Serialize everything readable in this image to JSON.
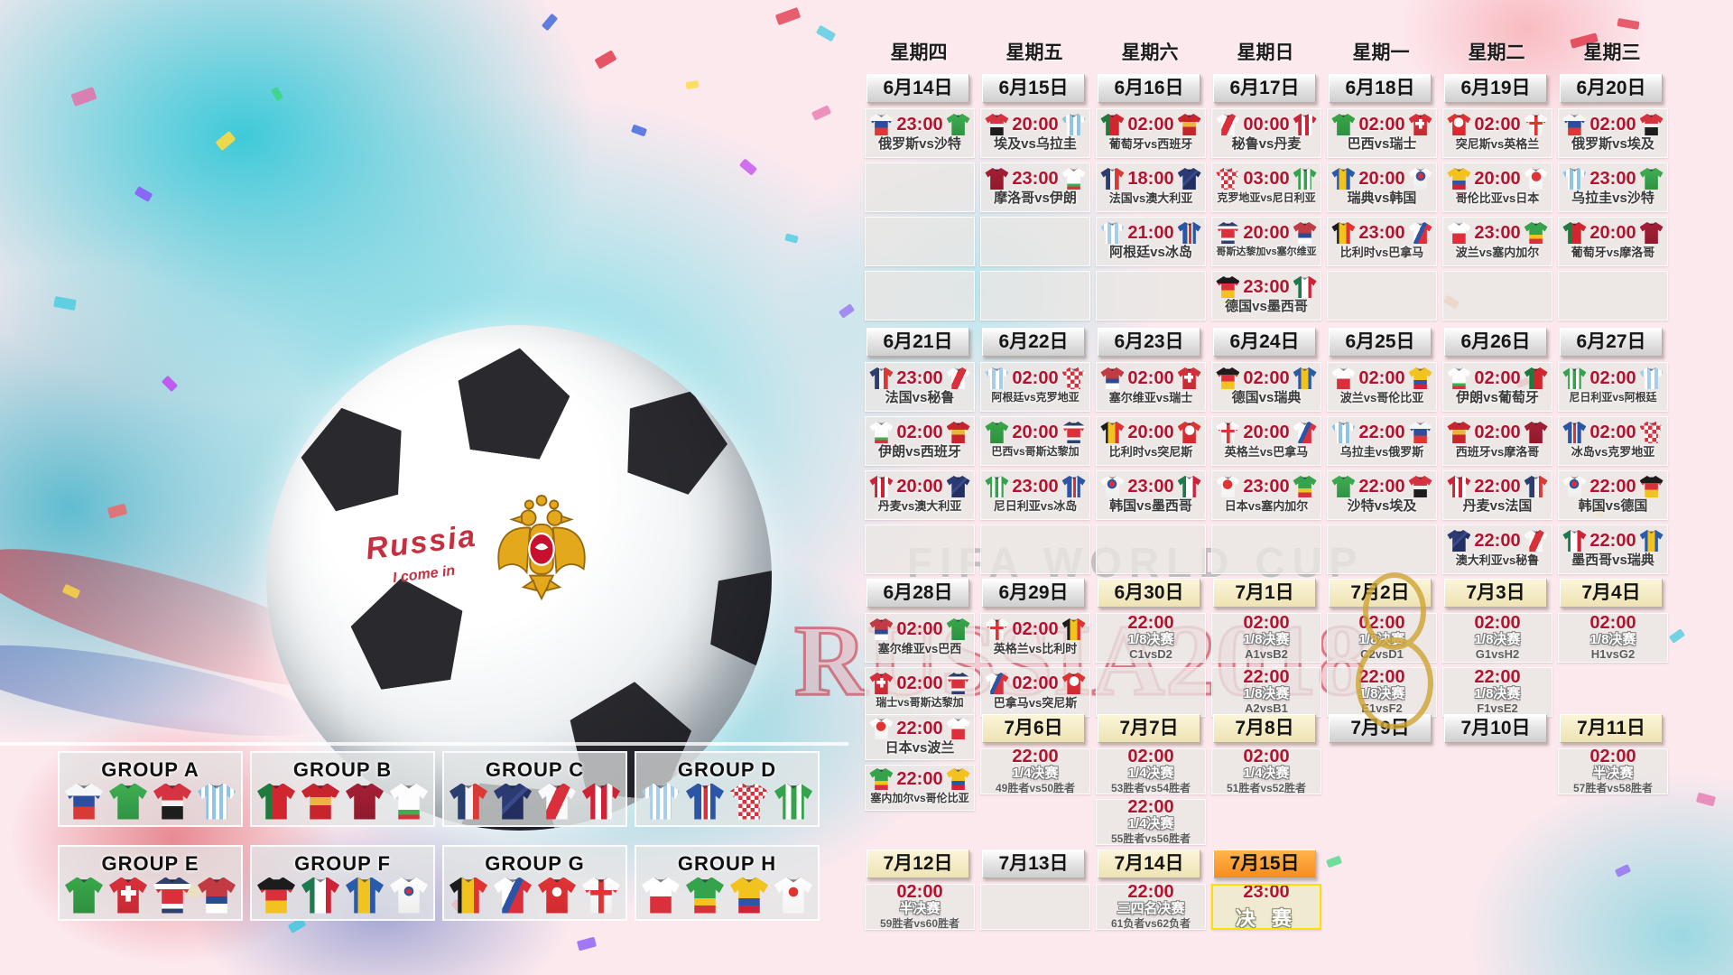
{
  "watermark": {
    "line1": "FIFA WORLD CUP",
    "line2": "RUSSIA2018"
  },
  "ball_text": {
    "line1": "Russia",
    "line2": "I come in"
  },
  "jersey_colors": {
    "ru": "linear-gradient(180deg,#f5f7f8 0 34%,#2b4ea0 34% 64%,#d93a36 64%)",
    "sa": "linear-gradient(180deg,#3fae52,#2f9343)",
    "eg": "linear-gradient(180deg,#d5333f 0 46%,#f2f2f2 46% 62%,#1d1d1d 62%)",
    "uy": "repeating-linear-gradient(90deg,#8fc3e8 0 4px,#ffffff 4px 8px)",
    "pt": "linear-gradient(90deg,#1f7a3d 0 38%,#cf2630 38%)",
    "es": "linear-gradient(180deg,#c8242e 0 38%,#e8b63c 38% 60%,#c8242e 60%)",
    "ma": "linear-gradient(180deg,#a51f35,#8f1a2d)",
    "ir": "linear-gradient(180deg,#fdfdfd 0 72%,#3fae52 72% 86%,#d5333f 86%)",
    "fr": "linear-gradient(90deg,#2a3f6e 0 42%,#f2f4f6 42% 62%,#d93a36 62%)",
    "au": "linear-gradient(135deg,#2b3a73 0 46%,#3a4a8a 46% 54%,#222f60 54%)",
    "pe": "linear-gradient(115deg,#fafafa 0 38%,#d9303c 38% 62%,#fafafa 62%)",
    "dk": "linear-gradient(90deg,#ce2336 0 34%,#ffffff 34% 50%,#ce2336 50% 66%,#ffffff 66% 80%,#ce2336 80%)",
    "ar": "repeating-linear-gradient(90deg,#a7cdec 0 4px,#ffffff 4px 8px)",
    "is": "linear-gradient(90deg,#2c55a5 0 40%,#ffffff 40% 47%,#d9303c 47% 57%,#ffffff 57% 64%,#2c55a5 64%)",
    "hr": "repeating-conic-gradient(#d9303c 0% 25%,#ffffff 25% 50%) 0 0 / 9px 9px",
    "ng": "linear-gradient(90deg,#35a24c 0 30%,#ffffff 30% 44%,#35a24c 44% 58%,#ffffff 58% 72%,#35a24c 72%)",
    "br": "linear-gradient(180deg,#39a84a,#2e8f3e)",
    "ch": "linear-gradient(#ffffff,#ffffff) 50% 42%/14% 44% no-repeat, linear-gradient(#ffffff,#ffffff) 50% 42%/40% 15% no-repeat, linear-gradient(#d9303c,#c62a34)",
    "cr": "linear-gradient(180deg,#30406e 0 18%,#ffffff 18% 32%,#d9303c 32% 72%,#ffffff 72% 86%,#30406e 86%)",
    "rs": "linear-gradient(180deg,#c23a44 0 52%,#2c4a8f 52% 72%,#ffffff 72%)",
    "de": "linear-gradient(180deg,#1c1c1c 0 34%,#d9303c 34% 64%,#f2c21e 64%)",
    "mx": "linear-gradient(90deg,#1c7a4c 0 34%,#ffffff 34% 64%,#ce2336 64%)",
    "se": "linear-gradient(90deg,#2a5ba8 0 32%,#f2c21e 32% 64%,#2a5ba8 64%)",
    "kr": "radial-gradient(circle at 50% 38%, #d9303c 0 3px, #2c55a5 3px 5px, rgba(0,0,0,0) 5.5px), linear-gradient(#ffffff,#ededed)",
    "be": "linear-gradient(90deg,#1c1c1c 0 32%,#f2c21e 32% 64%,#e03434 64%)",
    "pa": "linear-gradient(115deg,#ffffff 0 42%,#2c55a5 42% 56%,#d9303c 56%)",
    "tn": "radial-gradient(circle at 50% 40%, #ffffff 0 5px, rgba(0,0,0,0) 5.5px), linear-gradient(#e03434,#d02b30)",
    "en": "linear-gradient(#e03434,#e03434) 50% 50%/14% 100% no-repeat, linear-gradient(#e03434,#e03434) 50% 42%/100% 14% no-repeat, linear-gradient(#ffffff,#f0f0f0)",
    "pl": "linear-gradient(180deg,#ffffff 0 52%,#d9303c 52%)",
    "sn": "linear-gradient(180deg,#35a24c 0 58%,#f2c21e 58% 78%,#d9303c 78%)",
    "co": "linear-gradient(180deg,#f2c21e 0 58%,#2c55a5 58% 78%,#ce2336 78%)",
    "jp": "radial-gradient(circle at 50% 40%, #e03434 0 5px, rgba(0,0,0,0) 5.5px), linear-gradient(#ffffff,#f3f3f3)"
  },
  "groups": [
    {
      "letter": "A",
      "label": "GROUP A",
      "teams": [
        "ru",
        "sa",
        "eg",
        "uy"
      ]
    },
    {
      "letter": "B",
      "label": "GROUP B",
      "teams": [
        "pt",
        "es",
        "ma",
        "ir"
      ]
    },
    {
      "letter": "C",
      "label": "GROUP C",
      "teams": [
        "fr",
        "au",
        "pe",
        "dk"
      ]
    },
    {
      "letter": "D",
      "label": "GROUP D",
      "teams": [
        "ar",
        "is",
        "hr",
        "ng"
      ]
    },
    {
      "letter": "E",
      "label": "GROUP E",
      "teams": [
        "br",
        "ch",
        "cr",
        "rs"
      ]
    },
    {
      "letter": "F",
      "label": "GROUP F",
      "teams": [
        "de",
        "mx",
        "se",
        "kr"
      ]
    },
    {
      "letter": "G",
      "label": "GROUP G",
      "teams": [
        "be",
        "pa",
        "tn",
        "en"
      ]
    },
    {
      "letter": "H",
      "label": "GROUP H",
      "teams": [
        "pl",
        "sn",
        "co",
        "jp"
      ]
    }
  ],
  "calendar": {
    "weekdays": [
      "星期四",
      "星期五",
      "星期六",
      "星期日",
      "星期一",
      "星期二",
      "星期三"
    ],
    "weeks": [
      {
        "dates": [
          {
            "label": "6月14日",
            "style": "s"
          },
          {
            "label": "6月15日",
            "style": "s"
          },
          {
            "label": "6月16日",
            "style": "s"
          },
          {
            "label": "6月17日",
            "style": "s"
          },
          {
            "label": "6月18日",
            "style": "s"
          },
          {
            "label": "6月19日",
            "style": "s"
          },
          {
            "label": "6月20日",
            "style": "s"
          }
        ],
        "rows": [
          [
            {
              "t": "m",
              "time": "23:00",
              "h": "ru",
              "a": "sa",
              "label": "俄罗斯vs沙特"
            },
            {
              "t": "m",
              "time": "20:00",
              "h": "eg",
              "a": "uy",
              "label": "埃及vs乌拉圭"
            },
            {
              "t": "m",
              "time": "02:00",
              "h": "pt",
              "a": "es",
              "label": "葡萄牙vs西班牙"
            },
            {
              "t": "m",
              "time": "00:00",
              "h": "pe",
              "a": "dk",
              "label": "秘鲁vs丹麦"
            },
            {
              "t": "m",
              "time": "02:00",
              "h": "br",
              "a": "ch",
              "label": "巴西vs瑞士"
            },
            {
              "t": "m",
              "time": "02:00",
              "h": "tn",
              "a": "en",
              "label": "突尼斯vs英格兰"
            },
            {
              "t": "m",
              "time": "02:00",
              "h": "ru",
              "a": "eg",
              "label": "俄罗斯vs埃及"
            }
          ],
          [
            {
              "t": "e"
            },
            {
              "t": "m",
              "time": "23:00",
              "h": "ma",
              "a": "ir",
              "label": "摩洛哥vs伊朗"
            },
            {
              "t": "m",
              "time": "18:00",
              "h": "fr",
              "a": "au",
              "label": "法国vs澳大利亚"
            },
            {
              "t": "m",
              "time": "03:00",
              "h": "hr",
              "a": "ng",
              "label": "克罗地亚vs尼日利亚"
            },
            {
              "t": "m",
              "time": "20:00",
              "h": "se",
              "a": "kr",
              "label": "瑞典vs韩国"
            },
            {
              "t": "m",
              "time": "20:00",
              "h": "co",
              "a": "jp",
              "label": "哥伦比亚vs日本"
            },
            {
              "t": "m",
              "time": "23:00",
              "h": "uy",
              "a": "sa",
              "label": "乌拉圭vs沙特"
            }
          ],
          [
            {
              "t": "e"
            },
            {
              "t": "e"
            },
            {
              "t": "m",
              "time": "21:00",
              "h": "ar",
              "a": "is",
              "label": "阿根廷vs冰岛"
            },
            {
              "t": "m",
              "time": "20:00",
              "h": "cr",
              "a": "rs",
              "label": "哥斯达黎加vs塞尔维亚"
            },
            {
              "t": "m",
              "time": "23:00",
              "h": "be",
              "a": "pa",
              "label": "比利时vs巴拿马"
            },
            {
              "t": "m",
              "time": "23:00",
              "h": "pl",
              "a": "sn",
              "label": "波兰vs塞内加尔"
            },
            {
              "t": "m",
              "time": "20:00",
              "h": "pt",
              "a": "ma",
              "label": "葡萄牙vs摩洛哥"
            }
          ],
          [
            {
              "t": "e"
            },
            {
              "t": "e"
            },
            {
              "t": "e"
            },
            {
              "t": "m",
              "time": "23:00",
              "h": "de",
              "a": "mx",
              "label": "德国vs墨西哥"
            },
            {
              "t": "e"
            },
            {
              "t": "e"
            },
            {
              "t": "e"
            }
          ]
        ]
      },
      {
        "dates": [
          {
            "label": "6月21日",
            "style": "s"
          },
          {
            "label": "6月22日",
            "style": "s"
          },
          {
            "label": "6月23日",
            "style": "s"
          },
          {
            "label": "6月24日",
            "style": "s"
          },
          {
            "label": "6月25日",
            "style": "s"
          },
          {
            "label": "6月26日",
            "style": "s"
          },
          {
            "label": "6月27日",
            "style": "s"
          }
        ],
        "rows": [
          [
            {
              "t": "m",
              "time": "23:00",
              "h": "fr",
              "a": "pe",
              "label": "法国vs秘鲁"
            },
            {
              "t": "m",
              "time": "02:00",
              "h": "ar",
              "a": "hr",
              "label": "阿根廷vs克罗地亚"
            },
            {
              "t": "m",
              "time": "02:00",
              "h": "rs",
              "a": "ch",
              "label": "塞尔维亚vs瑞士"
            },
            {
              "t": "m",
              "time": "02:00",
              "h": "de",
              "a": "se",
              "label": "德国vs瑞典"
            },
            {
              "t": "m",
              "time": "02:00",
              "h": "pl",
              "a": "co",
              "label": "波兰vs哥伦比亚"
            },
            {
              "t": "m",
              "time": "02:00",
              "h": "ir",
              "a": "pt",
              "label": "伊朗vs葡萄牙"
            },
            {
              "t": "m",
              "time": "02:00",
              "h": "ng",
              "a": "ar",
              "label": "尼日利亚vs阿根廷"
            }
          ],
          [
            {
              "t": "m",
              "time": "02:00",
              "h": "ir",
              "a": "es",
              "label": "伊朗vs西班牙"
            },
            {
              "t": "m",
              "time": "20:00",
              "h": "br",
              "a": "cr",
              "label": "巴西vs哥斯达黎加"
            },
            {
              "t": "m",
              "time": "20:00",
              "h": "be",
              "a": "tn",
              "label": "比利时vs突尼斯"
            },
            {
              "t": "m",
              "time": "20:00",
              "h": "en",
              "a": "pa",
              "label": "英格兰vs巴拿马"
            },
            {
              "t": "m",
              "time": "22:00",
              "h": "uy",
              "a": "ru",
              "label": "乌拉圭vs俄罗斯"
            },
            {
              "t": "m",
              "time": "02:00",
              "h": "es",
              "a": "ma",
              "label": "西班牙vs摩洛哥"
            },
            {
              "t": "m",
              "time": "02:00",
              "h": "is",
              "a": "hr",
              "label": "冰岛vs克罗地亚"
            }
          ],
          [
            {
              "t": "m",
              "time": "20:00",
              "h": "dk",
              "a": "au",
              "label": "丹麦vs澳大利亚"
            },
            {
              "t": "m",
              "time": "23:00",
              "h": "ng",
              "a": "is",
              "label": "尼日利亚vs冰岛"
            },
            {
              "t": "m",
              "time": "23:00",
              "h": "kr",
              "a": "mx",
              "label": "韩国vs墨西哥"
            },
            {
              "t": "m",
              "time": "23:00",
              "h": "jp",
              "a": "sn",
              "label": "日本vs塞内加尔"
            },
            {
              "t": "m",
              "time": "22:00",
              "h": "sa",
              "a": "eg",
              "label": "沙特vs埃及"
            },
            {
              "t": "m",
              "time": "22:00",
              "h": "dk",
              "a": "fr",
              "label": "丹麦vs法国"
            },
            {
              "t": "m",
              "time": "22:00",
              "h": "kr",
              "a": "de",
              "label": "韩国vs德国"
            }
          ],
          [
            {
              "t": "e"
            },
            {
              "t": "e"
            },
            {
              "t": "e"
            },
            {
              "t": "e"
            },
            {
              "t": "e"
            },
            {
              "t": "m",
              "time": "22:00",
              "h": "au",
              "a": "pe",
              "label": "澳大利亚vs秘鲁"
            },
            {
              "t": "m",
              "time": "22:00",
              "h": "mx",
              "a": "se",
              "label": "墨西哥vs瑞典"
            }
          ]
        ]
      },
      {
        "dates": [
          {
            "label": "6月28日",
            "style": "s"
          },
          {
            "label": "6月29日",
            "style": "s"
          },
          {
            "label": "6月30日",
            "style": "c"
          },
          {
            "label": "7月1日",
            "style": "c"
          },
          {
            "label": "7月2日",
            "style": "c"
          },
          {
            "label": "7月3日",
            "style": "c"
          },
          {
            "label": "7月4日",
            "style": "c"
          }
        ],
        "rows": [
          [
            {
              "t": "m",
              "time": "02:00",
              "h": "rs",
              "a": "br",
              "label": "塞尔维亚vs巴西"
            },
            {
              "t": "m",
              "time": "02:00",
              "h": "en",
              "a": "be",
              "label": "英格兰vs比利时"
            },
            {
              "t": "k",
              "time": "22:00",
              "stage": "1/8决赛",
              "teams": "C1vsD2"
            },
            {
              "t": "k",
              "time": "02:00",
              "stage": "1/8决赛",
              "teams": "A1vsB2"
            },
            {
              "t": "k",
              "time": "02:00",
              "stage": "1/8决赛",
              "teams": "C2vsD1"
            },
            {
              "t": "k",
              "time": "02:00",
              "stage": "1/8决赛",
              "teams": "G1vsH2"
            },
            {
              "t": "k",
              "time": "02:00",
              "stage": "1/8决赛",
              "teams": "H1vsG2"
            }
          ],
          [
            {
              "t": "m",
              "time": "02:00",
              "h": "ch",
              "a": "cr",
              "label": "瑞士vs哥斯达黎加"
            },
            {
              "t": "m",
              "time": "02:00",
              "h": "pa",
              "a": "tn",
              "label": "巴拿马vs突尼斯"
            },
            {
              "t": "e"
            },
            {
              "t": "k",
              "time": "22:00",
              "stage": "1/8决赛",
              "teams": "A2vsB1"
            },
            {
              "t": "k",
              "time": "22:00",
              "stage": "1/8决赛",
              "teams": "E1vsF2"
            },
            {
              "t": "k",
              "time": "22:00",
              "stage": "1/8决赛",
              "teams": "F1vsE2"
            },
            null
          ]
        ]
      },
      {
        "dates": [
          null,
          {
            "label": "7月6日",
            "style": "c"
          },
          {
            "label": "7月7日",
            "style": "c"
          },
          {
            "label": "7月8日",
            "style": "c"
          },
          {
            "label": "7月9日",
            "style": "s"
          },
          {
            "label": "7月10日",
            "style": "s"
          },
          {
            "label": "7月11日",
            "style": "c"
          }
        ],
        "rows": [
          [
            {
              "t": "m",
              "time": "22:00",
              "h": "jp",
              "a": "pl",
              "label": "日本vs波兰"
            },
            {
              "t": "k",
              "time": "22:00",
              "stage": "1/4决赛",
              "teams": "49胜者vs50胜者"
            },
            {
              "t": "k",
              "time": "02:00",
              "stage": "1/4决赛",
              "teams": "53胜者vs54胜者"
            },
            {
              "t": "k",
              "time": "02:00",
              "stage": "1/4决赛",
              "teams": "51胜者vs52胜者"
            },
            null,
            null,
            {
              "t": "k",
              "time": "02:00",
              "stage": "半决赛",
              "teams": "57胜者vs58胜者"
            }
          ],
          [
            {
              "t": "m",
              "time": "22:00",
              "h": "sn",
              "a": "co",
              "label": "塞内加尔vs哥伦比亚"
            },
            null,
            {
              "t": "k",
              "time": "22:00",
              "stage": "1/4决赛",
              "teams": "55胜者vs56胜者"
            },
            null,
            null,
            null,
            null
          ]
        ]
      },
      {
        "dates": [
          {
            "label": "7月12日",
            "style": "c"
          },
          {
            "label": "7月13日",
            "style": "s"
          },
          {
            "label": "7月14日",
            "style": "c"
          },
          {
            "label": "7月15日",
            "style": "o"
          },
          null,
          null,
          null
        ],
        "rows": [
          [
            {
              "t": "k",
              "time": "02:00",
              "stage": "半决赛",
              "teams": "59胜者vs60胜者"
            },
            {
              "t": "e"
            },
            {
              "t": "k",
              "time": "22:00",
              "stage": "三四名决赛",
              "teams": "61负者vs62负者"
            },
            {
              "t": "f",
              "time": "23:00",
              "label": "决 赛"
            },
            null,
            null,
            null
          ]
        ]
      }
    ]
  }
}
